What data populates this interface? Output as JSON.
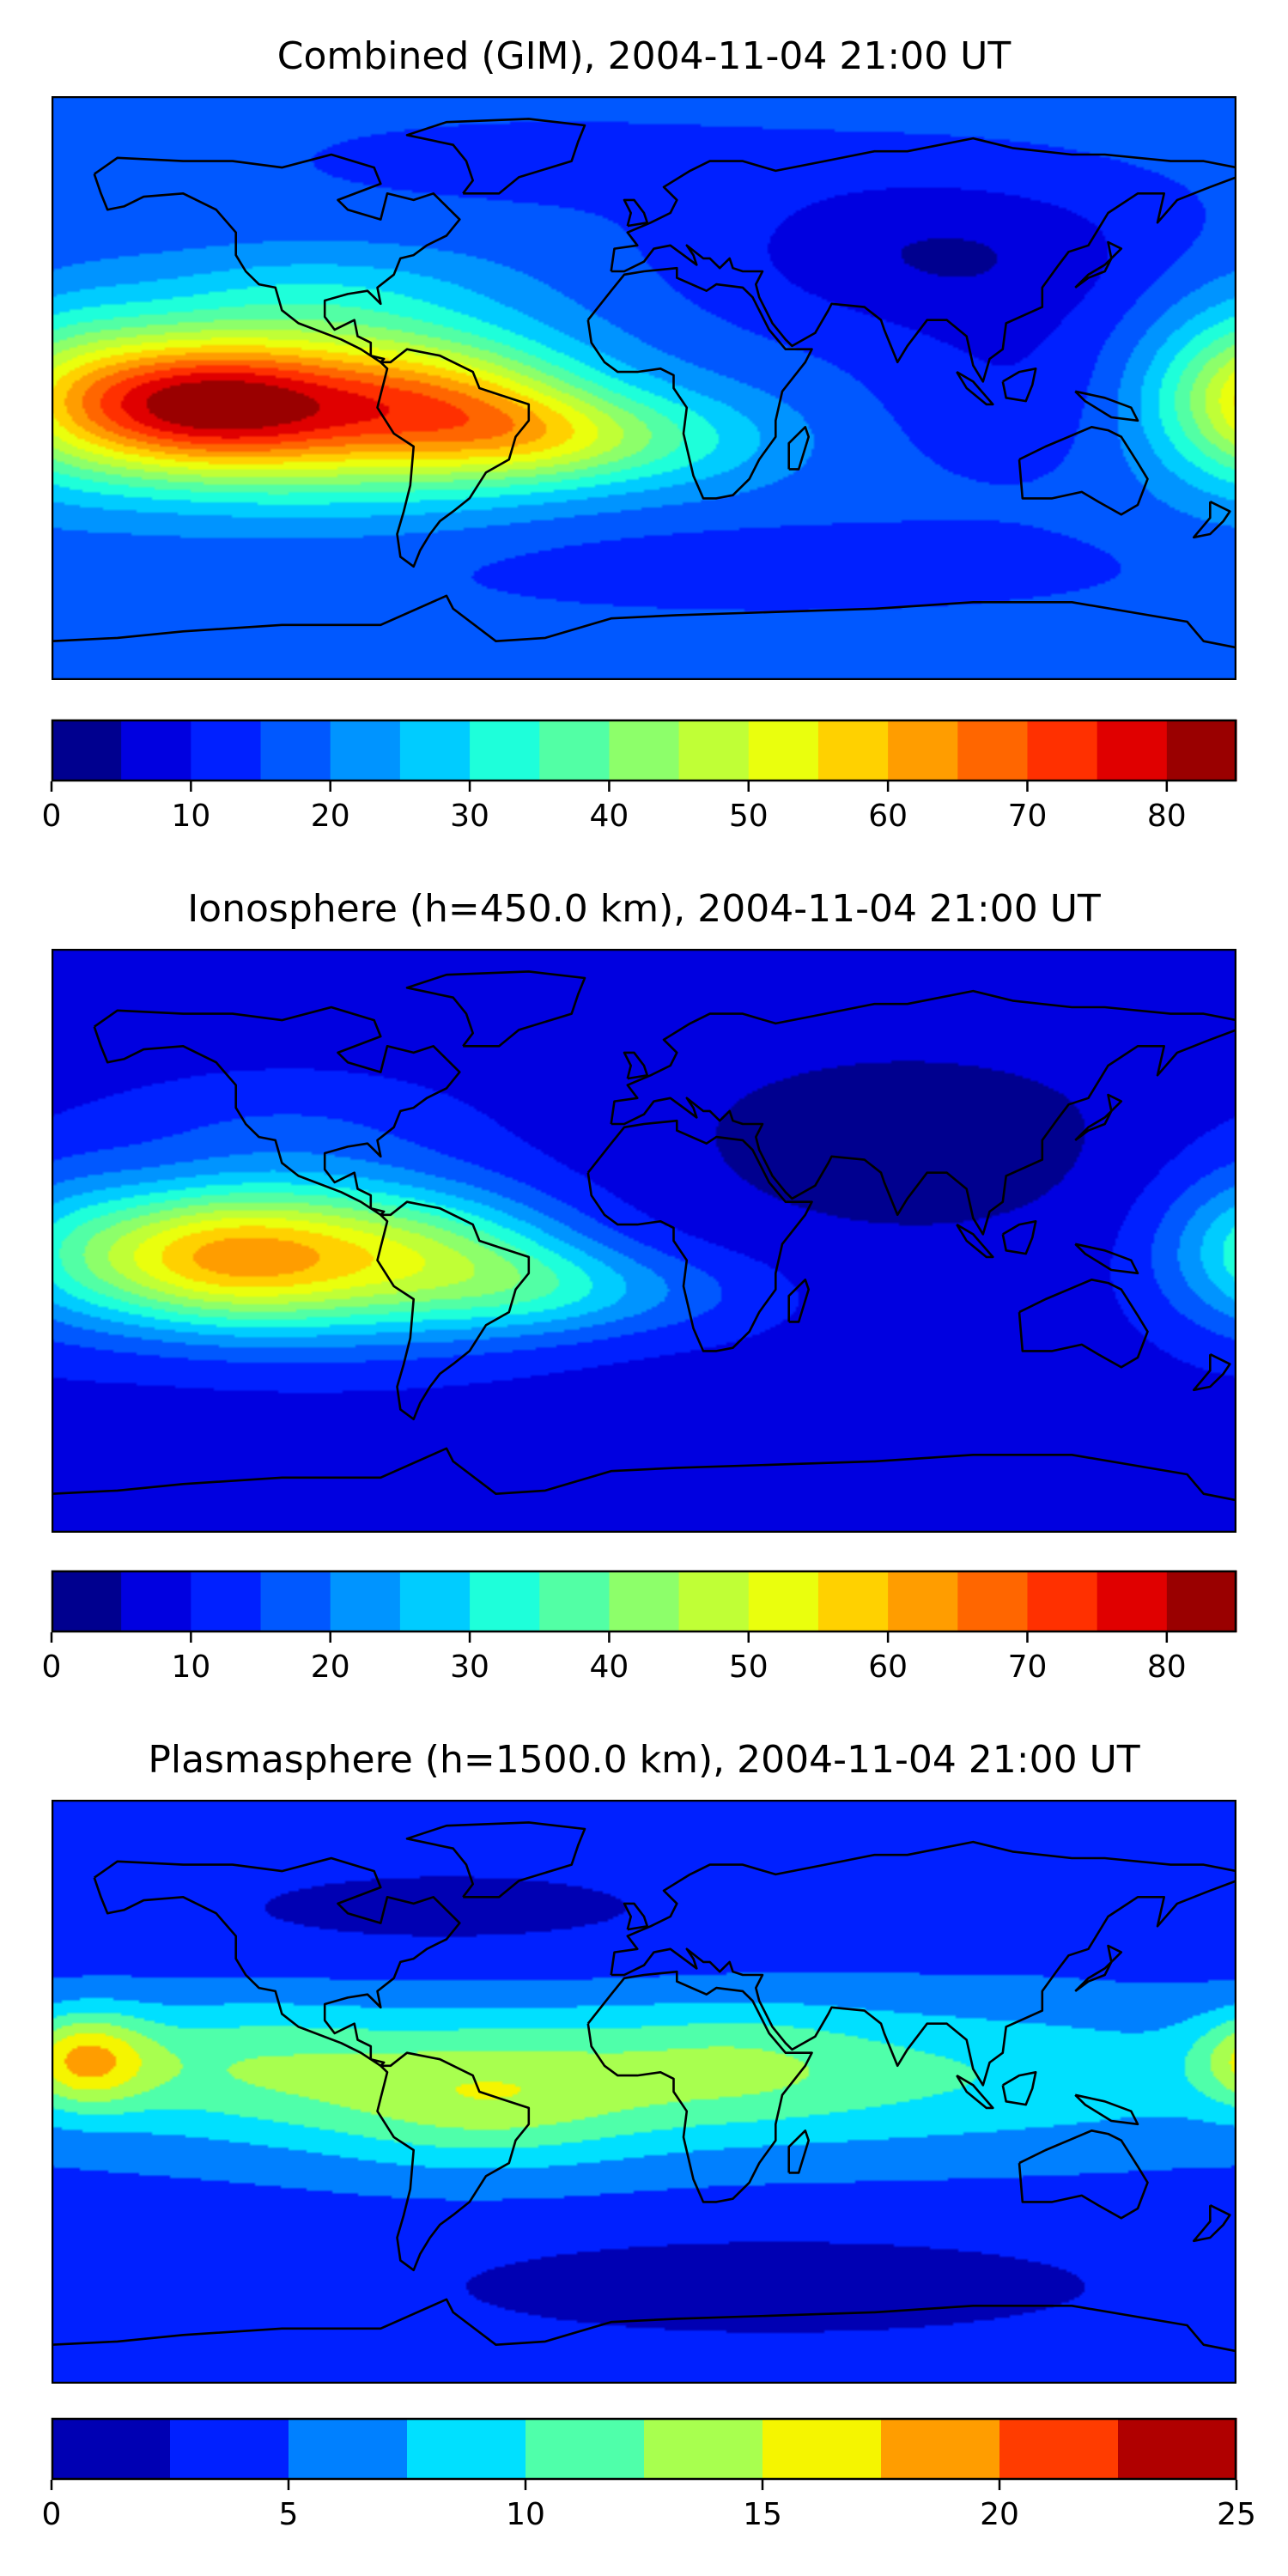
{
  "chart_data": [
    {
      "type": "heatmap",
      "title": "Combined (GIM), 2004-11-04 21:00 UT",
      "colorbar": {
        "min": 0,
        "max": 85,
        "step": 5,
        "ticks": [
          0,
          10,
          20,
          30,
          40,
          50,
          60,
          70,
          80
        ],
        "tick_labels": [
          "0",
          "10",
          "20",
          "30",
          "40",
          "50",
          "60",
          "70",
          "80"
        ],
        "colors": [
          "#00008f",
          "#0000e0",
          "#0020ff",
          "#0058ff",
          "#0094ff",
          "#00ccff",
          "#1effda",
          "#52ffa5",
          "#8dff6a",
          "#c0ff36",
          "#eaff0d",
          "#ffd100",
          "#ff9d00",
          "#ff6600",
          "#ff3000",
          "#e00000",
          "#9a0000"
        ]
      },
      "field": {
        "base": 17,
        "blobs": [
          {
            "lon": -140,
            "lat": -5,
            "slon": 32,
            "slat": 15,
            "amp": 44
          },
          {
            "lon": -90,
            "lat": -6,
            "slon": 45,
            "slat": 18,
            "amp": 40
          },
          {
            "lon": -58,
            "lat": -8,
            "slon": 26,
            "slat": 14,
            "amp": 16
          },
          {
            "lon": -30,
            "lat": -15,
            "slon": 22,
            "slat": 10,
            "amp": 14
          },
          {
            "lon": 5,
            "lat": -16,
            "slon": 28,
            "slat": 11,
            "amp": 13
          },
          {
            "lon": 180,
            "lat": 0,
            "slon": 22,
            "slat": 22,
            "amp": 14
          },
          {
            "lon": -100,
            "lat": 30,
            "slon": 40,
            "slat": 10,
            "amp": 8
          },
          {
            "lon": 90,
            "lat": 42,
            "slon": 50,
            "slat": 18,
            "amp": -12
          },
          {
            "lon": 115,
            "lat": 0,
            "slon": 30,
            "slat": 20,
            "amp": -6
          },
          {
            "lon": -30,
            "lat": 70,
            "slon": 60,
            "slat": 10,
            "amp": -4
          },
          {
            "lon": 40,
            "lat": -55,
            "slon": 80,
            "slat": 10,
            "amp": -5
          }
        ]
      }
    },
    {
      "type": "heatmap",
      "title": "Ionosphere  (h=450.0 km), 2004-11-04 21:00 UT",
      "colorbar": {
        "min": 0,
        "max": 85,
        "step": 5,
        "ticks": [
          0,
          10,
          20,
          30,
          40,
          50,
          60,
          70,
          80
        ],
        "tick_labels": [
          "0",
          "10",
          "20",
          "30",
          "40",
          "50",
          "60",
          "70",
          "80"
        ],
        "colors": [
          "#00008f",
          "#0000e0",
          "#0020ff",
          "#0058ff",
          "#0094ff",
          "#00ccff",
          "#1effda",
          "#52ffa5",
          "#8dff6a",
          "#c0ff36",
          "#eaff0d",
          "#ffd100",
          "#ff9d00",
          "#ff6600",
          "#ff3000",
          "#e00000",
          "#9a0000"
        ]
      },
      "field": {
        "base": 8,
        "blobs": [
          {
            "lon": -135,
            "lat": -5,
            "slon": 32,
            "slat": 15,
            "amp": 34
          },
          {
            "lon": -90,
            "lat": -5,
            "slon": 42,
            "slat": 17,
            "amp": 32
          },
          {
            "lon": -58,
            "lat": -8,
            "slon": 26,
            "slat": 14,
            "amp": 10
          },
          {
            "lon": -30,
            "lat": -15,
            "slon": 22,
            "slat": 10,
            "amp": 10
          },
          {
            "lon": 5,
            "lat": -16,
            "slon": 28,
            "slat": 10,
            "amp": 8
          },
          {
            "lon": 180,
            "lat": 0,
            "slon": 20,
            "slat": 20,
            "amp": 10
          },
          {
            "lon": -110,
            "lat": 35,
            "slon": 40,
            "slat": 12,
            "amp": 6
          },
          {
            "lon": 80,
            "lat": 30,
            "slon": 60,
            "slat": 25,
            "amp": -5
          }
        ]
      }
    },
    {
      "type": "heatmap",
      "title": "Plasmasphere (h=1500.0 km), 2004-11-04 21:00 UT",
      "colorbar": {
        "min": 0,
        "max": 25,
        "step": 2.5,
        "ticks": [
          0,
          5,
          10,
          15,
          20,
          25
        ],
        "tick_labels": [
          "0",
          "5",
          "10",
          "15",
          "20",
          "25"
        ],
        "colors": [
          "#0000b3",
          "#0020ff",
          "#0080ff",
          "#00e0ff",
          "#4fffaa",
          "#a8ff4f",
          "#f5f500",
          "#ff9d00",
          "#ff3c00",
          "#b00000"
        ]
      },
      "field": {
        "base": 4,
        "blobs": [
          {
            "lon": 0,
            "lat": 5,
            "slon": 150,
            "slat": 17,
            "amp": 7.5
          },
          {
            "lon": -50,
            "lat": -5,
            "slon": 35,
            "slat": 14,
            "amp": 4.5
          },
          {
            "lon": -170,
            "lat": 10,
            "slon": 14,
            "slat": 10,
            "amp": 10
          },
          {
            "lon": -125,
            "lat": 10,
            "slon": 30,
            "slat": 14,
            "amp": 3
          },
          {
            "lon": 30,
            "lat": 10,
            "slon": 25,
            "slat": 12,
            "amp": 2
          },
          {
            "lon": 40,
            "lat": -60,
            "slon": 80,
            "slat": 12,
            "amp": -3
          },
          {
            "lon": -60,
            "lat": 55,
            "slon": 80,
            "slat": 15,
            "amp": -2
          }
        ]
      }
    }
  ],
  "map": {
    "coastline_color": "#000000",
    "lon_range": [
      -180,
      180
    ],
    "lat_range": [
      -90,
      90
    ]
  }
}
